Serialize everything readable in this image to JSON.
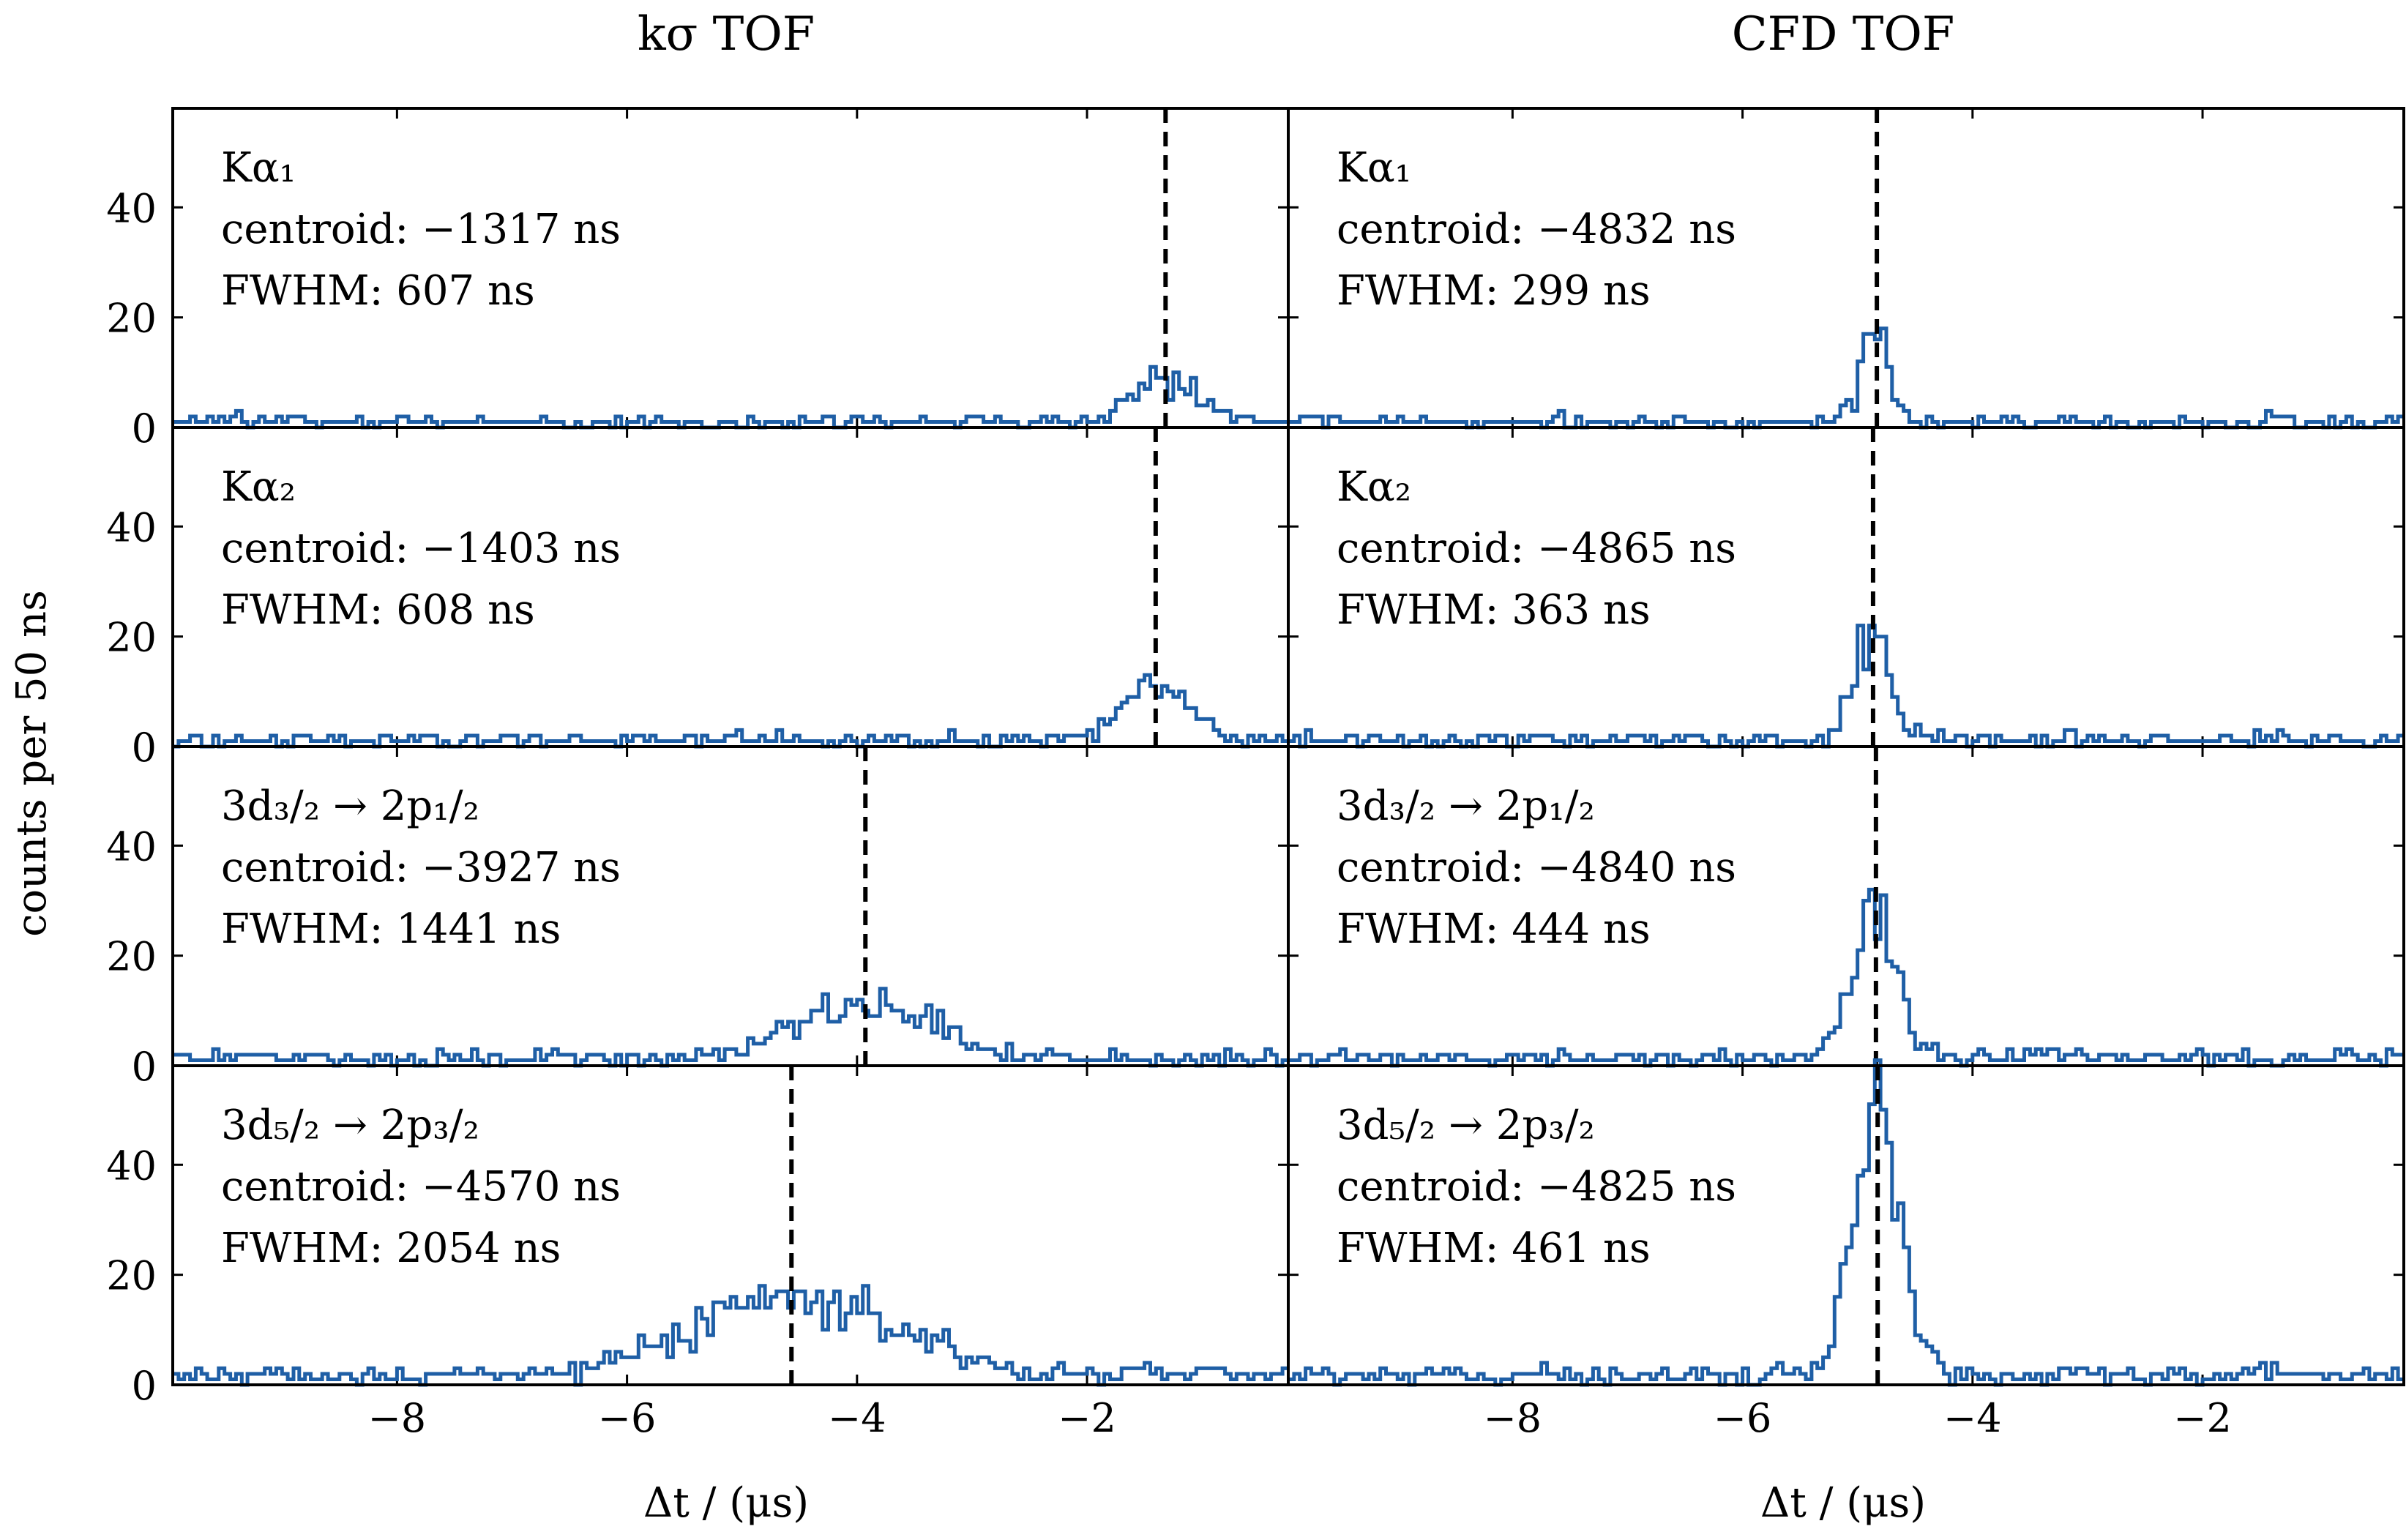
{
  "figure": {
    "column_titles": [
      "kσ TOF",
      "CFD TOF"
    ],
    "ylabel": "counts per 50 ns",
    "xlabel": "Δt / (μs)"
  },
  "chart_data": {
    "type": "histogram-grid",
    "rows": 4,
    "cols": 2,
    "bin_width_ns": 50,
    "xlim": [
      -9.95,
      -0.25
    ],
    "ylim": [
      0,
      58
    ],
    "x_ticks": [
      -8,
      -6,
      -4,
      -2
    ],
    "x_tick_labels": [
      "−8",
      "−6",
      "−4",
      "−2"
    ],
    "y_ticks": [
      0,
      20,
      40
    ],
    "y_tick_labels": [
      "0",
      "20",
      "40"
    ],
    "line_color": "#1f5fa6",
    "dashed_color": "#000000",
    "panels": [
      {
        "row": 0,
        "col": 0,
        "transition": "Kα₁",
        "centroid_label": "centroid:  −1317 ns",
        "fwhm_label": "FWHM: 607 ns",
        "centroid_us": -1.317,
        "fwhm_us": 0.607,
        "peak": 8,
        "bg": 1.0,
        "seed": 11
      },
      {
        "row": 0,
        "col": 1,
        "transition": "Kα₁",
        "centroid_label": "centroid:  −4832 ns",
        "fwhm_label": "FWHM: 299 ns",
        "centroid_us": -4.832,
        "fwhm_us": 0.299,
        "peak": 15,
        "bg": 1.0,
        "seed": 12
      },
      {
        "row": 1,
        "col": 0,
        "transition": "Kα₂",
        "centroid_label": "centroid:  −1403 ns",
        "fwhm_label": "FWHM: 608 ns",
        "centroid_us": -1.403,
        "fwhm_us": 0.608,
        "peak": 11,
        "bg": 1.2,
        "seed": 13
      },
      {
        "row": 1,
        "col": 1,
        "transition": "Kα₂",
        "centroid_label": "centroid:  −4865 ns",
        "fwhm_label": "FWHM: 363 ns",
        "centroid_us": -4.865,
        "fwhm_us": 0.363,
        "peak": 19,
        "bg": 1.2,
        "seed": 14
      },
      {
        "row": 2,
        "col": 0,
        "transition": "3d₃/₂ → 2p₁/₂",
        "centroid_label": "centroid:  −3927 ns",
        "fwhm_label": "FWHM: 1441 ns",
        "centroid_us": -3.927,
        "fwhm_us": 1.441,
        "peak": 10,
        "bg": 1.5,
        "seed": 15
      },
      {
        "row": 2,
        "col": 1,
        "transition": "3d₃/₂ → 2p₁/₂",
        "centroid_label": "centroid:  −4840 ns",
        "fwhm_label": "FWHM: 444 ns",
        "centroid_us": -4.84,
        "fwhm_us": 0.444,
        "peak": 29,
        "bg": 1.5,
        "seed": 16
      },
      {
        "row": 3,
        "col": 0,
        "transition": "3d₅/₂ → 2p₃/₂",
        "centroid_label": "centroid:  −4570 ns",
        "fwhm_label": "FWHM: 2054 ns",
        "centroid_us": -4.57,
        "fwhm_us": 2.054,
        "peak": 14,
        "bg": 1.8,
        "seed": 17
      },
      {
        "row": 3,
        "col": 1,
        "transition": "3d₅/₂ → 2p₃/₂",
        "centroid_label": "centroid:  −4825 ns",
        "fwhm_label": "FWHM: 461 ns",
        "centroid_us": -4.825,
        "fwhm_us": 0.461,
        "peak": 48,
        "bg": 1.8,
        "seed": 18
      }
    ]
  }
}
